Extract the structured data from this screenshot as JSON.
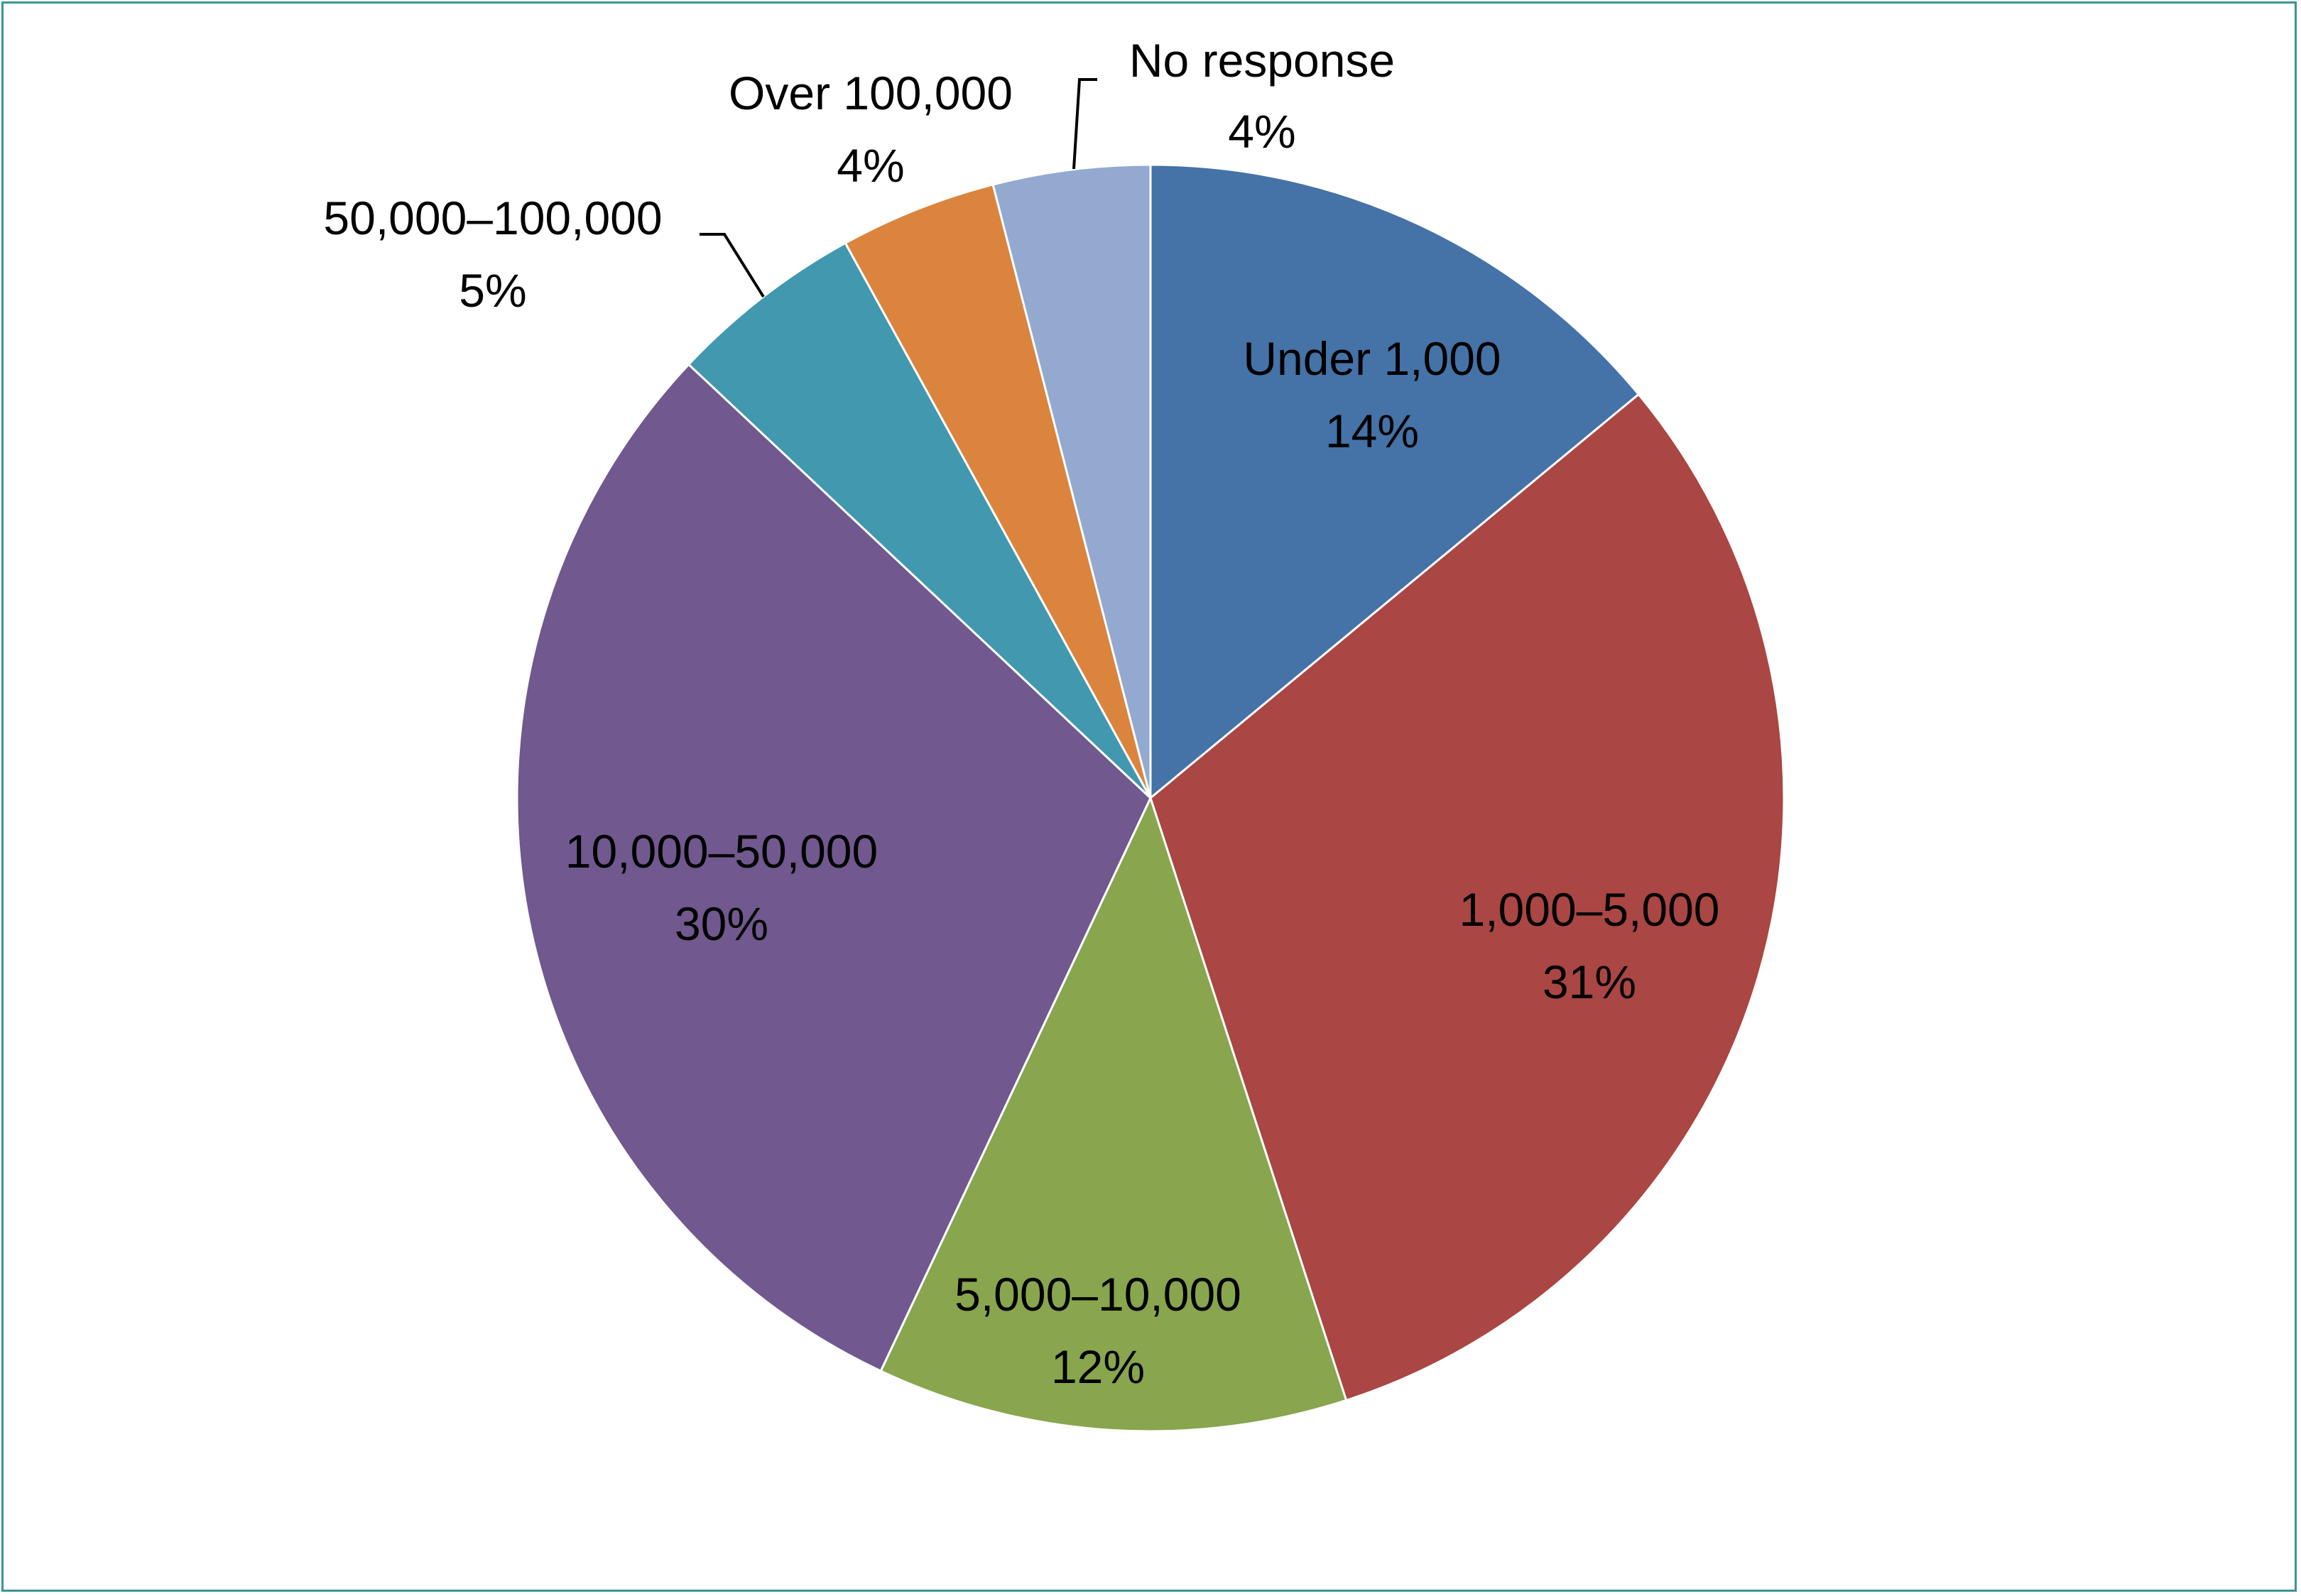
{
  "chart_data": {
    "type": "pie",
    "title": "",
    "start_angle_deg": 0,
    "direction": "clockwise",
    "slices": [
      {
        "label": "Under 1,000",
        "value": 14,
        "value_label": "14%",
        "color": "#4572A7"
      },
      {
        "label": "1,000–5,000",
        "value": 31,
        "value_label": "31%",
        "color": "#AA4643"
      },
      {
        "label": "5,000–10,000",
        "value": 12,
        "value_label": "12%",
        "color": "#89A54E"
      },
      {
        "label": "10,000–50,000",
        "value": 30,
        "value_label": "30%",
        "color": "#71588F"
      },
      {
        "label": "50,000–100,000",
        "value": 5,
        "value_label": "5%",
        "color": "#4198AF"
      },
      {
        "label": "Over 100,000",
        "value": 4,
        "value_label": "4%",
        "color": "#DB843D"
      },
      {
        "label": "No response",
        "value": 4,
        "value_label": "4%",
        "color": "#93A9CF"
      }
    ],
    "legend": "none"
  }
}
